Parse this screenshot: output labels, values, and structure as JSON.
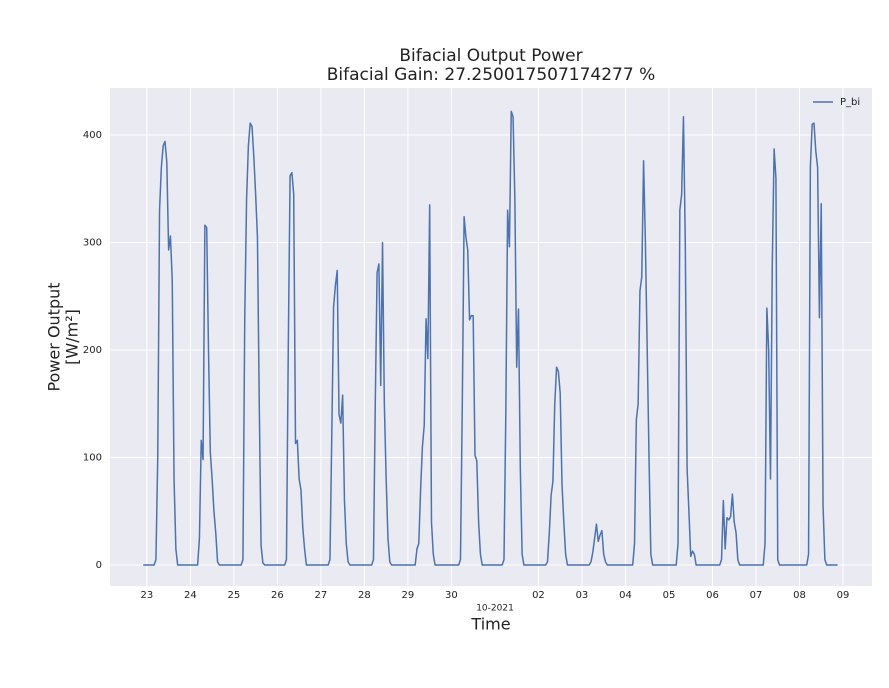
{
  "chart_data": {
    "type": "line",
    "title": "Bifacial Output Power",
    "subtitle": "Bifacial Gain: 27.250017507174277 %",
    "x_label": "Time",
    "x_offset_label": "10-2021",
    "y_label": [
      "Power Output",
      "[W/m²]"
    ],
    "legend": "upper right",
    "grid": true,
    "xlim": [
      "2021-09-22T03:40",
      "2021-10-09T16:00"
    ],
    "ylim": [
      -19.5,
      443.7
    ],
    "yticks": [
      0,
      100,
      200,
      300,
      400
    ],
    "xticks": [
      {
        "value": "2021-09-23T00:00",
        "label": "23"
      },
      {
        "value": "2021-09-24T00:00",
        "label": "24"
      },
      {
        "value": "2021-09-25T00:00",
        "label": "25"
      },
      {
        "value": "2021-09-26T00:00",
        "label": "26"
      },
      {
        "value": "2021-09-27T00:00",
        "label": "27"
      },
      {
        "value": "2021-09-28T00:00",
        "label": "28"
      },
      {
        "value": "2021-09-29T00:00",
        "label": "29"
      },
      {
        "value": "2021-09-30T00:00",
        "label": "30"
      },
      {
        "value": "2021-10-02T00:00",
        "label": "02"
      },
      {
        "value": "2021-10-03T00:00",
        "label": "03"
      },
      {
        "value": "2021-10-04T00:00",
        "label": "04"
      },
      {
        "value": "2021-10-05T00:00",
        "label": "05"
      },
      {
        "value": "2021-10-06T00:00",
        "label": "06"
      },
      {
        "value": "2021-10-07T00:00",
        "label": "07"
      },
      {
        "value": "2021-10-08T00:00",
        "label": "08"
      },
      {
        "value": "2021-10-09T00:00",
        "label": "09"
      }
    ],
    "x": [
      "2021-09-22T22:00",
      "2021-09-23T04:00",
      "2021-09-23T05:00",
      "2021-09-23T06:00",
      "2021-09-23T07:00",
      "2021-09-23T08:00",
      "2021-09-23T09:00",
      "2021-09-23T10:00",
      "2021-09-23T11:00",
      "2021-09-23T12:00",
      "2021-09-23T13:00",
      "2021-09-23T14:00",
      "2021-09-23T15:00",
      "2021-09-23T16:00",
      "2021-09-23T17:00",
      "2021-09-24T04:00",
      "2021-09-24T05:00",
      "2021-09-24T06:00",
      "2021-09-24T07:00",
      "2021-09-24T08:00",
      "2021-09-24T09:00",
      "2021-09-24T10:00",
      "2021-09-24T11:00",
      "2021-09-24T12:00",
      "2021-09-24T13:00",
      "2021-09-24T14:00",
      "2021-09-24T15:00",
      "2021-09-24T16:00",
      "2021-09-25T04:00",
      "2021-09-25T05:00",
      "2021-09-25T06:00",
      "2021-09-25T07:00",
      "2021-09-25T08:00",
      "2021-09-25T09:00",
      "2021-09-25T10:00",
      "2021-09-25T11:00",
      "2021-09-25T12:00",
      "2021-09-25T13:00",
      "2021-09-25T14:00",
      "2021-09-25T15:00",
      "2021-09-25T16:00",
      "2021-09-25T17:00",
      "2021-09-26T04:00",
      "2021-09-26T05:00",
      "2021-09-26T06:00",
      "2021-09-26T07:00",
      "2021-09-26T08:00",
      "2021-09-26T09:00",
      "2021-09-26T10:00",
      "2021-09-26T11:00",
      "2021-09-26T12:00",
      "2021-09-26T13:00",
      "2021-09-26T14:00",
      "2021-09-26T15:00",
      "2021-09-26T16:00",
      "2021-09-27T04:00",
      "2021-09-27T05:00",
      "2021-09-27T06:00",
      "2021-09-27T07:00",
      "2021-09-27T08:00",
      "2021-09-27T09:00",
      "2021-09-27T10:00",
      "2021-09-27T11:00",
      "2021-09-27T12:00",
      "2021-09-27T13:00",
      "2021-09-27T14:00",
      "2021-09-27T15:00",
      "2021-09-27T16:00",
      "2021-09-28T04:00",
      "2021-09-28T05:00",
      "2021-09-28T06:00",
      "2021-09-28T07:00",
      "2021-09-28T08:00",
      "2021-09-28T09:00",
      "2021-09-28T10:00",
      "2021-09-28T11:00",
      "2021-09-28T12:00",
      "2021-09-28T13:00",
      "2021-09-28T14:00",
      "2021-09-28T15:00",
      "2021-09-29T04:00",
      "2021-09-29T05:00",
      "2021-09-29T06:00",
      "2021-09-29T07:00",
      "2021-09-29T08:00",
      "2021-09-29T09:00",
      "2021-09-29T10:00",
      "2021-09-29T11:00",
      "2021-09-29T12:00",
      "2021-09-29T13:00",
      "2021-09-29T14:00",
      "2021-09-29T15:00",
      "2021-09-30T04:00",
      "2021-09-30T05:00",
      "2021-09-30T06:00",
      "2021-09-30T07:00",
      "2021-09-30T08:00",
      "2021-09-30T09:00",
      "2021-09-30T10:00",
      "2021-09-30T11:00",
      "2021-09-30T12:00",
      "2021-09-30T13:00",
      "2021-09-30T14:00",
      "2021-09-30T15:00",
      "2021-09-30T16:00",
      "2021-09-30T17:00",
      "2021-10-01T04:00",
      "2021-10-01T05:00",
      "2021-10-01T06:00",
      "2021-10-01T07:00",
      "2021-10-01T08:00",
      "2021-10-01T09:00",
      "2021-10-01T10:00",
      "2021-10-01T11:00",
      "2021-10-01T12:00",
      "2021-10-01T13:00",
      "2021-10-01T14:00",
      "2021-10-01T15:00",
      "2021-10-01T16:00",
      "2021-10-02T04:00",
      "2021-10-02T05:00",
      "2021-10-02T06:00",
      "2021-10-02T07:00",
      "2021-10-02T08:00",
      "2021-10-02T09:00",
      "2021-10-02T10:00",
      "2021-10-02T11:00",
      "2021-10-02T12:00",
      "2021-10-02T13:00",
      "2021-10-02T14:00",
      "2021-10-02T15:00",
      "2021-10-02T16:00",
      "2021-10-03T04:00",
      "2021-10-03T05:00",
      "2021-10-03T06:00",
      "2021-10-03T07:00",
      "2021-10-03T08:00",
      "2021-10-03T09:00",
      "2021-10-03T10:00",
      "2021-10-03T11:00",
      "2021-10-03T12:00",
      "2021-10-03T13:00",
      "2021-10-03T14:00",
      "2021-10-04T04:00",
      "2021-10-04T05:00",
      "2021-10-04T06:00",
      "2021-10-04T07:00",
      "2021-10-04T08:00",
      "2021-10-04T09:00",
      "2021-10-04T10:00",
      "2021-10-04T11:00",
      "2021-10-04T12:00",
      "2021-10-04T13:00",
      "2021-10-04T14:00",
      "2021-10-04T15:00",
      "2021-10-05T04:00",
      "2021-10-05T05:00",
      "2021-10-05T06:00",
      "2021-10-05T07:00",
      "2021-10-05T08:00",
      "2021-10-05T09:00",
      "2021-10-05T10:00",
      "2021-10-05T11:00",
      "2021-10-05T12:00",
      "2021-10-05T13:00",
      "2021-10-05T14:00",
      "2021-10-05T15:00",
      "2021-10-06T04:00",
      "2021-10-06T05:00",
      "2021-10-06T06:00",
      "2021-10-06T07:00",
      "2021-10-06T08:00",
      "2021-10-06T09:00",
      "2021-10-06T10:00",
      "2021-10-06T11:00",
      "2021-10-06T12:00",
      "2021-10-06T13:00",
      "2021-10-06T14:00",
      "2021-10-06T15:00",
      "2021-10-07T04:00",
      "2021-10-07T05:00",
      "2021-10-07T06:00",
      "2021-10-07T07:00",
      "2021-10-07T08:00",
      "2021-10-07T09:00",
      "2021-10-07T10:00",
      "2021-10-07T11:00",
      "2021-10-07T12:00",
      "2021-10-07T13:00",
      "2021-10-08T04:00",
      "2021-10-08T05:00",
      "2021-10-08T06:00",
      "2021-10-08T07:00",
      "2021-10-08T08:00",
      "2021-10-08T09:00",
      "2021-10-08T10:00",
      "2021-10-08T11:00",
      "2021-10-08T12:00",
      "2021-10-08T13:00",
      "2021-10-08T14:00",
      "2021-10-08T15:00",
      "2021-10-08T21:00"
    ],
    "series": [
      {
        "name": "P_bi",
        "color": "#4c72b0",
        "values": [
          0,
          0,
          5,
          100,
          330,
          370,
          390,
          394,
          375,
          293,
          306,
          265,
          80,
          15,
          0,
          0,
          25,
          116,
          98,
          316,
          314,
          200,
          105,
          80,
          50,
          30,
          3,
          0,
          0,
          5,
          230,
          340,
          390,
          411,
          408,
          380,
          345,
          305,
          150,
          18,
          2,
          0,
          0,
          5,
          200,
          362,
          365,
          345,
          113,
          116,
          80,
          70,
          35,
          15,
          0,
          0,
          5,
          120,
          240,
          260,
          274,
          140,
          132,
          158,
          60,
          20,
          3,
          0,
          0,
          5,
          150,
          272,
          280,
          167,
          300,
          150,
          80,
          25,
          3,
          0,
          0,
          15,
          20,
          70,
          110,
          130,
          229,
          192,
          335,
          40,
          10,
          0,
          0,
          5,
          150,
          324,
          305,
          293,
          228,
          232,
          232,
          102,
          97,
          40,
          10,
          0,
          0,
          5,
          140,
          330,
          296,
          422,
          417,
          340,
          184,
          238,
          90,
          10,
          0,
          0,
          3,
          30,
          65,
          78,
          150,
          184,
          180,
          160,
          75,
          40,
          10,
          0,
          0,
          3,
          12,
          25,
          38,
          22,
          28,
          32,
          10,
          3,
          0,
          0,
          20,
          135,
          150,
          255,
          268,
          376,
          300,
          200,
          100,
          10,
          0,
          0,
          20,
          330,
          345,
          417,
          300,
          90,
          50,
          8,
          13,
          10,
          0,
          0,
          5,
          60,
          15,
          44,
          42,
          45,
          66,
          40,
          30,
          5,
          0,
          0,
          20,
          239,
          200,
          80,
          280,
          387,
          360,
          5,
          0,
          0,
          10,
          370,
          410,
          411,
          385,
          370,
          230,
          336,
          55,
          5,
          0,
          0
        ]
      }
    ]
  }
}
